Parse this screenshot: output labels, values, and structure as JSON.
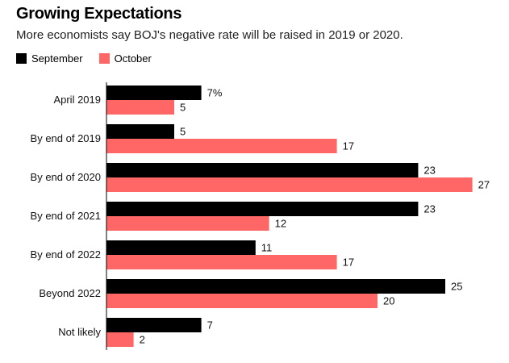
{
  "chart_data": {
    "type": "bar",
    "orientation": "horizontal",
    "title": "Growing Expectations",
    "subtitle": "More economists say BOJ's negative rate will be raised in 2019 or 2020.",
    "categories": [
      "April 2019",
      "By end of 2019",
      "By end of 2020",
      "By end of 2021",
      "By end of 2022",
      "Beyond 2022",
      "Not likely"
    ],
    "series": [
      {
        "name": "September",
        "color": "#000000",
        "values": [
          7,
          5,
          23,
          23,
          11,
          25,
          7
        ],
        "labels": [
          "7%",
          "5",
          "23",
          "23",
          "11",
          "25",
          "7"
        ]
      },
      {
        "name": "October",
        "color": "#ff6666",
        "values": [
          5,
          17,
          27,
          12,
          17,
          20,
          2
        ],
        "labels": [
          "5",
          "17",
          "27",
          "12",
          "17",
          "20",
          "2"
        ]
      }
    ],
    "xlim": [
      0,
      27
    ],
    "grid": false,
    "legend": "top-left",
    "xlabel": "",
    "ylabel": ""
  }
}
